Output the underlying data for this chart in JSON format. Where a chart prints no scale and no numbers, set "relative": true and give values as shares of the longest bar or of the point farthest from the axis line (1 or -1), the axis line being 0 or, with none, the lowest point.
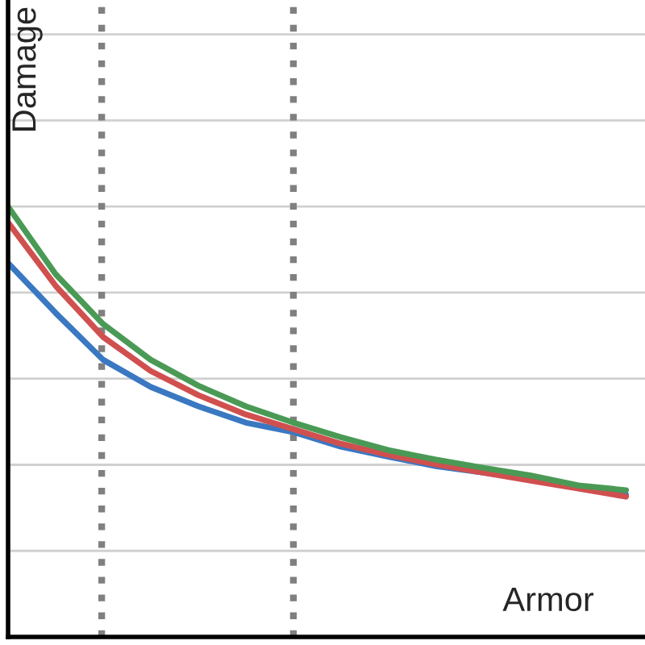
{
  "chart_data": {
    "type": "line",
    "relative": true,
    "xlabel": "Armor",
    "ylabel": "Damage",
    "categories": [
      null,
      null,
      null,
      null,
      null,
      null,
      null,
      null,
      null,
      null,
      null,
      null,
      null,
      null
    ],
    "series": [
      {
        "color": "#3a78c2",
        "values": [
          0.869,
          0.753,
          0.644,
          0.581,
          0.536,
          0.498,
          0.476,
          0.442,
          0.419,
          0.397,
          0.382,
          0.367,
          0.348,
          0.33
        ]
      },
      {
        "color": "#d0504f",
        "values": [
          0.963,
          0.816,
          0.697,
          0.618,
          0.562,
          0.517,
          0.483,
          0.449,
          0.423,
          0.401,
          0.382,
          0.363,
          0.345,
          0.326
        ]
      },
      {
        "color": "#4a9a55",
        "values": [
          1.0,
          0.843,
          0.727,
          0.644,
          0.584,
          0.536,
          0.498,
          0.464,
          0.434,
          0.412,
          0.393,
          0.375,
          0.352,
          0.341
        ]
      }
    ],
    "grid": true,
    "marker": "none",
    "line_style": "solid"
  }
}
